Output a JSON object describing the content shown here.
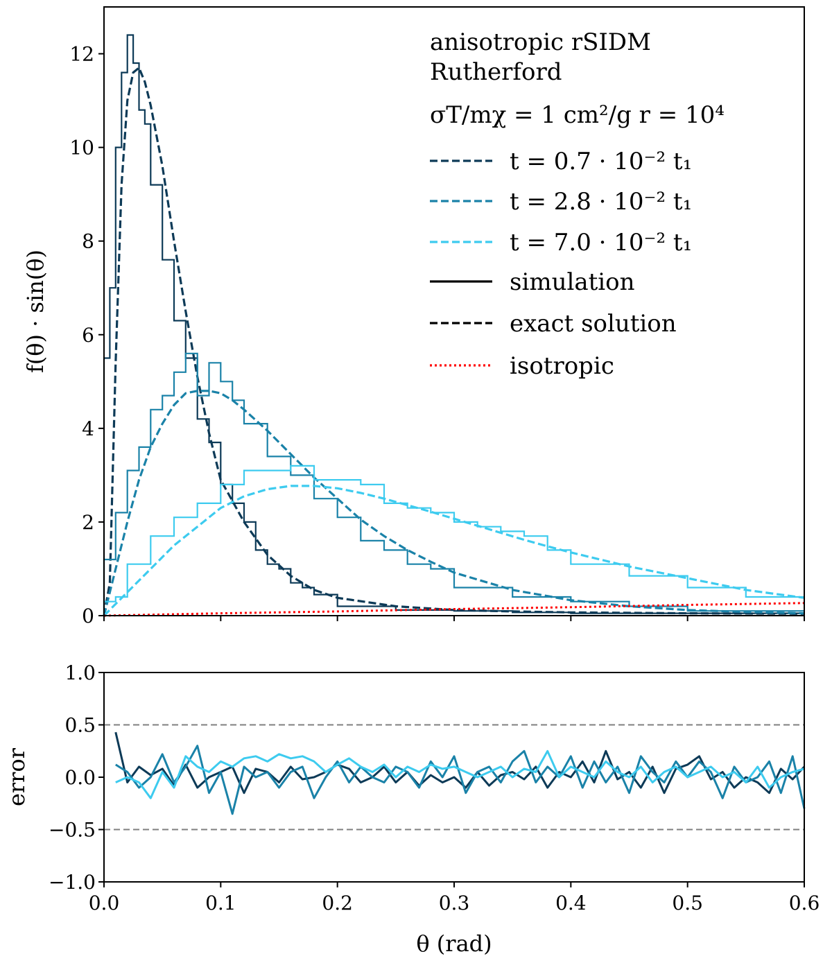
{
  "chart_data": [
    {
      "type": "line",
      "panel": "main",
      "ylabel": "f(θ) · sin(θ)",
      "xlim": [
        0.0,
        0.6
      ],
      "ylim": [
        0,
        13
      ],
      "x_ticks": [
        "0.0",
        "0.1",
        "0.2",
        "0.3",
        "0.4",
        "0.5",
        "0.6"
      ],
      "y_ticks": [
        "0",
        "2",
        "4",
        "6",
        "8",
        "10",
        "12"
      ],
      "grid": false,
      "legend_placement": "top-right",
      "legend": {
        "title_line1": "anisotropic rSIDM",
        "title_line2": "Rutherford",
        "parameters": "σT/mχ = 1 cm²/g    r = 10⁴",
        "entries": [
          {
            "label": "t = 0.7 · 10⁻² t₁",
            "style": "dashed",
            "color": "#0d3a57"
          },
          {
            "label": "t = 2.8 · 10⁻² t₁",
            "style": "dashed",
            "color": "#1a82a8"
          },
          {
            "label": "t = 7.0 · 10⁻² t₁",
            "style": "dashed",
            "color": "#3dcbef"
          },
          {
            "label": "simulation",
            "style": "solid",
            "color": "#000000"
          },
          {
            "label": "exact solution",
            "style": "dashed",
            "color": "#000000"
          },
          {
            "label": "isotropic",
            "style": "dotted",
            "color": "#ff0000"
          }
        ]
      },
      "series": [
        {
          "name": "t = 0.7 · 10⁻² t₁",
          "color": "#0d3a57",
          "exact_solution": {
            "x": [
              0.0,
              0.005,
              0.01,
              0.015,
              0.02,
              0.025,
              0.03,
              0.035,
              0.04,
              0.05,
              0.06,
              0.07,
              0.08,
              0.09,
              0.1,
              0.12,
              0.14,
              0.16,
              0.18,
              0.2,
              0.25,
              0.3,
              0.35,
              0.4,
              0.5,
              0.6
            ],
            "y": [
              0.0,
              0.7,
              5.4,
              9.2,
              11.0,
              11.6,
              11.7,
              11.4,
              10.9,
              9.6,
              8.0,
              6.5,
              5.1,
              3.9,
              2.9,
              2.0,
              1.3,
              0.85,
              0.55,
              0.38,
              0.2,
              0.12,
              0.09,
              0.07,
              0.05,
              0.04
            ]
          },
          "simulation": {
            "x": [
              0.005,
              0.01,
              0.015,
              0.02,
              0.025,
              0.03,
              0.035,
              0.04,
              0.05,
              0.06,
              0.07,
              0.08,
              0.09,
              0.1,
              0.11,
              0.12,
              0.13,
              0.14,
              0.15,
              0.16,
              0.17,
              0.18,
              0.2,
              0.25,
              0.3,
              0.35,
              0.4,
              0.5,
              0.6
            ],
            "y": [
              5.5,
              7.0,
              10.0,
              11.6,
              12.4,
              11.8,
              10.8,
              10.5,
              9.2,
              7.6,
              6.3,
              5.5,
              4.2,
              3.7,
              2.8,
              2.4,
              2.0,
              1.4,
              1.1,
              1.0,
              0.7,
              0.6,
              0.45,
              0.2,
              0.12,
              0.1,
              0.07,
              0.05,
              0.05
            ]
          }
        },
        {
          "name": "t = 2.8 · 10⁻² t₁",
          "color": "#1a82a8",
          "exact_solution": {
            "x": [
              0.0,
              0.01,
              0.02,
              0.03,
              0.04,
              0.05,
              0.06,
              0.07,
              0.08,
              0.09,
              0.1,
              0.11,
              0.12,
              0.14,
              0.16,
              0.18,
              0.2,
              0.22,
              0.24,
              0.26,
              0.28,
              0.3,
              0.35,
              0.4,
              0.45,
              0.5,
              0.55,
              0.6
            ],
            "y": [
              0.0,
              1.0,
              2.0,
              2.9,
              3.6,
              4.1,
              4.5,
              4.75,
              4.8,
              4.8,
              4.75,
              4.6,
              4.4,
              3.95,
              3.45,
              2.95,
              2.5,
              2.05,
              1.7,
              1.4,
              1.15,
              0.92,
              0.55,
              0.33,
              0.2,
              0.12,
              0.08,
              0.05
            ]
          },
          "simulation": {
            "x": [
              0.01,
              0.02,
              0.03,
              0.04,
              0.05,
              0.06,
              0.07,
              0.08,
              0.09,
              0.1,
              0.11,
              0.12,
              0.14,
              0.16,
              0.18,
              0.2,
              0.22,
              0.24,
              0.26,
              0.28,
              0.3,
              0.35,
              0.4,
              0.45,
              0.5,
              0.55,
              0.6
            ],
            "y": [
              1.2,
              2.2,
              3.1,
              3.6,
              4.4,
              4.7,
              5.2,
              5.6,
              4.7,
              5.4,
              5.0,
              4.6,
              4.1,
              3.4,
              3.0,
              2.5,
              2.1,
              1.6,
              1.4,
              1.1,
              1.0,
              0.6,
              0.4,
              0.3,
              0.2,
              0.1,
              0.1
            ]
          }
        },
        {
          "name": "t = 7.0 · 10⁻² t₁",
          "color": "#3dcbef",
          "exact_solution": {
            "x": [
              0.0,
              0.02,
              0.04,
              0.06,
              0.08,
              0.1,
              0.12,
              0.14,
              0.16,
              0.18,
              0.2,
              0.22,
              0.24,
              0.26,
              0.28,
              0.3,
              0.32,
              0.34,
              0.36,
              0.38,
              0.4,
              0.45,
              0.5,
              0.55,
              0.6
            ],
            "y": [
              0.0,
              0.5,
              1.0,
              1.5,
              1.9,
              2.3,
              2.55,
              2.7,
              2.77,
              2.77,
              2.72,
              2.62,
              2.5,
              2.36,
              2.22,
              2.07,
              1.92,
              1.77,
              1.62,
              1.48,
              1.35,
              1.05,
              0.8,
              0.55,
              0.38
            ]
          },
          "simulation": {
            "x": [
              0.01,
              0.02,
              0.04,
              0.06,
              0.08,
              0.1,
              0.12,
              0.14,
              0.16,
              0.18,
              0.2,
              0.22,
              0.24,
              0.26,
              0.28,
              0.3,
              0.32,
              0.34,
              0.36,
              0.38,
              0.4,
              0.45,
              0.5,
              0.55,
              0.6
            ],
            "y": [
              0.3,
              0.4,
              1.1,
              1.7,
              2.1,
              2.4,
              2.8,
              3.1,
              3.1,
              3.2,
              2.9,
              2.9,
              2.8,
              2.4,
              2.3,
              2.2,
              2.0,
              1.9,
              1.8,
              1.7,
              1.4,
              1.1,
              0.85,
              0.6,
              0.4
            ]
          }
        },
        {
          "name": "isotropic",
          "color": "#ff0000",
          "style": "dotted",
          "x": [
            0.0,
            0.1,
            0.2,
            0.3,
            0.4,
            0.5,
            0.6
          ],
          "y": [
            0.0,
            0.05,
            0.09,
            0.14,
            0.18,
            0.23,
            0.27
          ]
        }
      ]
    },
    {
      "type": "line",
      "panel": "error",
      "xlabel": "θ (rad)",
      "ylabel": "error",
      "xlim": [
        0.0,
        0.6
      ],
      "ylim": [
        -1.0,
        1.0
      ],
      "x_ticks": [
        "0.0",
        "0.1",
        "0.2",
        "0.3",
        "0.4",
        "0.5",
        "0.6"
      ],
      "y_ticks": [
        "1.0",
        "0.5",
        "0.0",
        "−0.5",
        "−1.0"
      ],
      "reference_lines": [
        0.5,
        -0.5
      ],
      "reference_line_color": "#7f7f7f",
      "series": [
        {
          "name": "t = 0.7 · 10⁻² t₁",
          "color": "#0d3a57",
          "x": [
            0.01,
            0.02,
            0.03,
            0.04,
            0.05,
            0.06,
            0.07,
            0.08,
            0.09,
            0.1,
            0.11,
            0.12,
            0.13,
            0.14,
            0.15,
            0.16,
            0.17,
            0.18,
            0.19,
            0.2,
            0.21,
            0.22,
            0.23,
            0.24,
            0.25,
            0.26,
            0.27,
            0.28,
            0.29,
            0.3,
            0.31,
            0.32,
            0.33,
            0.34,
            0.35,
            0.36,
            0.37,
            0.38,
            0.39,
            0.4,
            0.41,
            0.42,
            0.43,
            0.44,
            0.45,
            0.46,
            0.47,
            0.48,
            0.49,
            0.5,
            0.51,
            0.52,
            0.53,
            0.54,
            0.55,
            0.56,
            0.57,
            0.58,
            0.59,
            0.6
          ],
          "y": [
            0.43,
            -0.05,
            0.1,
            0.02,
            0.08,
            -0.08,
            0.12,
            -0.1,
            0.0,
            0.05,
            0.1,
            -0.15,
            0.08,
            0.05,
            -0.05,
            0.1,
            -0.02,
            0.0,
            0.05,
            0.12,
            0.08,
            -0.05,
            0.0,
            0.1,
            -0.05,
            0.05,
            -0.08,
            0.02,
            -0.05,
            0.0,
            -0.1,
            0.05,
            -0.08,
            0.02,
            0.05,
            -0.02,
            0.1,
            -0.1,
            0.05,
            0.0,
            0.15,
            -0.05,
            0.25,
            -0.02,
            0.05,
            -0.1,
            0.1,
            -0.15,
            0.08,
            0.12,
            0.2,
            -0.02,
            0.05,
            -0.1,
            0.0,
            -0.05,
            -0.15,
            0.08,
            -0.02,
            0.1
          ]
        },
        {
          "name": "t = 2.8 · 10⁻² t₁",
          "color": "#1a82a8",
          "x": [
            0.01,
            0.02,
            0.03,
            0.04,
            0.05,
            0.06,
            0.07,
            0.08,
            0.09,
            0.1,
            0.11,
            0.12,
            0.13,
            0.14,
            0.15,
            0.16,
            0.17,
            0.18,
            0.19,
            0.2,
            0.21,
            0.22,
            0.23,
            0.24,
            0.25,
            0.26,
            0.27,
            0.28,
            0.29,
            0.3,
            0.31,
            0.32,
            0.33,
            0.34,
            0.35,
            0.36,
            0.37,
            0.38,
            0.39,
            0.4,
            0.41,
            0.42,
            0.43,
            0.44,
            0.45,
            0.46,
            0.47,
            0.48,
            0.49,
            0.5,
            0.51,
            0.52,
            0.53,
            0.54,
            0.55,
            0.56,
            0.57,
            0.58,
            0.59,
            0.6
          ],
          "y": [
            0.12,
            0.05,
            -0.1,
            0.0,
            0.22,
            -0.05,
            0.1,
            0.3,
            -0.15,
            0.05,
            -0.35,
            0.1,
            0.0,
            0.05,
            -0.1,
            0.05,
            0.1,
            -0.2,
            0.0,
            0.15,
            -0.05,
            0.1,
            0.0,
            -0.05,
            0.1,
            0.05,
            -0.1,
            0.15,
            0.0,
            0.2,
            -0.15,
            0.05,
            0.1,
            -0.05,
            0.15,
            0.25,
            -0.05,
            0.1,
            0.0,
            0.2,
            -0.1,
            0.15,
            -0.05,
            0.1,
            -0.15,
            0.2,
            0.05,
            -0.05,
            0.15,
            0.0,
            0.15,
            0.05,
            -0.2,
            0.1,
            -0.05,
            0.0,
            0.15,
            -0.15,
            0.2,
            -0.3
          ]
        },
        {
          "name": "t = 7.0 · 10⁻² t₁",
          "color": "#3dcbef",
          "x": [
            0.01,
            0.02,
            0.03,
            0.04,
            0.05,
            0.06,
            0.07,
            0.08,
            0.09,
            0.1,
            0.11,
            0.12,
            0.13,
            0.14,
            0.15,
            0.16,
            0.17,
            0.18,
            0.19,
            0.2,
            0.21,
            0.22,
            0.23,
            0.24,
            0.25,
            0.26,
            0.27,
            0.28,
            0.29,
            0.3,
            0.31,
            0.32,
            0.33,
            0.34,
            0.35,
            0.36,
            0.37,
            0.38,
            0.39,
            0.4,
            0.41,
            0.42,
            0.43,
            0.44,
            0.45,
            0.46,
            0.47,
            0.48,
            0.49,
            0.5,
            0.51,
            0.52,
            0.53,
            0.54,
            0.55,
            0.56,
            0.57,
            0.58,
            0.59,
            0.6
          ],
          "y": [
            -0.05,
            0.0,
            -0.05,
            -0.2,
            0.05,
            -0.1,
            0.2,
            0.1,
            0.05,
            0.15,
            0.1,
            0.18,
            0.2,
            0.15,
            0.22,
            0.18,
            0.2,
            0.15,
            0.05,
            0.12,
            0.18,
            0.1,
            0.05,
            0.12,
            0.0,
            0.1,
            0.05,
            0.12,
            0.08,
            0.1,
            0.05,
            0.0,
            0.05,
            0.1,
            0.0,
            0.08,
            0.05,
            0.25,
            0.0,
            0.1,
            0.05,
            0.0,
            0.15,
            0.05,
            0.0,
            0.1,
            -0.05,
            0.05,
            0.1,
            0.0,
            0.05,
            0.1,
            0.0,
            0.05,
            -0.05,
            0.1,
            -0.1,
            0.0,
            0.05,
            0.08
          ]
        }
      ]
    }
  ]
}
